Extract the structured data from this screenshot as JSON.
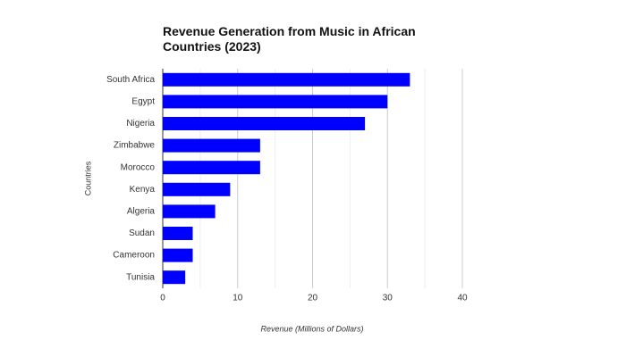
{
  "chart_data": {
    "type": "bar",
    "orientation": "horizontal",
    "title": "Revenue Generation from Music in African Countries (2023)",
    "x_label": "Revenue (Millions of Dollars)",
    "y_label": "Countries",
    "categories": [
      "South Africa",
      "Egypt",
      "Nigeria",
      "Zimbabwe",
      "Morocco",
      "Kenya",
      "Algeria",
      "Sudan",
      "Cameroon",
      "Tunisia"
    ],
    "values": [
      33,
      30,
      27,
      13,
      13,
      9,
      7,
      4,
      4,
      3
    ],
    "color": "#0000ff",
    "xlim": [
      0,
      40
    ],
    "xticks": [
      0,
      10,
      20,
      30,
      40
    ],
    "grid": true
  }
}
